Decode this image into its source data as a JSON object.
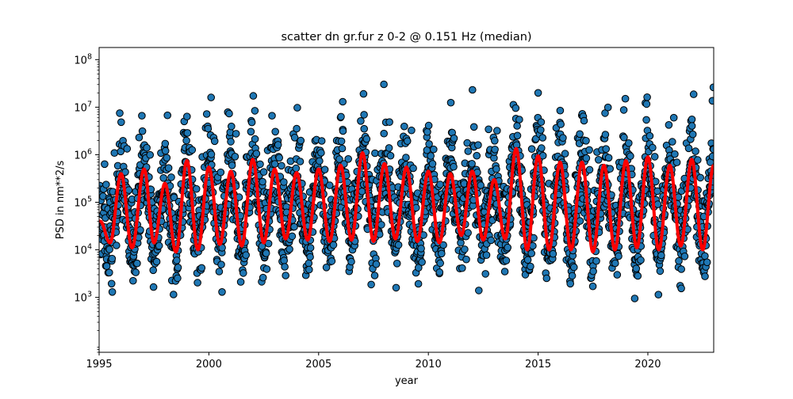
{
  "chart_data": {
    "type": "scatter",
    "title": "scatter dn gr.fur z 0-2 @ 0.151 Hz (median)",
    "xlabel": "year",
    "ylabel": "PSD in nm**2/s",
    "xlim": [
      1995,
      2023
    ],
    "ylim": [
      70,
      180000000
    ],
    "yscale": "log",
    "x_ticks": [
      1995,
      2000,
      2005,
      2010,
      2015,
      2020
    ],
    "x_tick_labels": [
      "1995",
      "2000",
      "2005",
      "2010",
      "2015",
      "2020"
    ],
    "y_ticks": [
      1000,
      10000,
      100000,
      1000000,
      10000000,
      100000000
    ],
    "y_tick_labels": [
      "10^3",
      "10^4",
      "10^5",
      "10^6",
      "10^7",
      "10^8"
    ],
    "grid": false,
    "series": [
      {
        "kind": "scatter",
        "color": "#1f77b4",
        "edgecolor": "#000000",
        "seasonal_median": {
          "peak_years": [
            1995.05,
            1996.0,
            1997.05,
            1998.0,
            1999.0,
            2000.0,
            2001.0,
            2002.0,
            2003.0,
            2004.0,
            2005.0,
            2006.0,
            2007.0,
            2008.0,
            2009.0,
            2010.0,
            2011.0,
            2012.0,
            2013.0,
            2014.0,
            2015.0,
            2016.0,
            2017.0,
            2018.0,
            2019.0,
            2020.0,
            2021.0,
            2022.0,
            2023.0
          ],
          "peak_values": [
            40000,
            400000,
            500000,
            250000,
            750000,
            550000,
            450000,
            800000,
            500000,
            420000,
            500000,
            600000,
            1100000,
            650000,
            550000,
            450000,
            400000,
            450000,
            300000,
            1350000,
            950000,
            700000,
            700000,
            600000,
            750000,
            900000,
            600000,
            800000,
            600000
          ],
          "trough_years": [
            1995.5,
            1996.5,
            1997.5,
            1998.5,
            1999.5,
            2000.5,
            2001.5,
            2002.5,
            2003.5,
            2004.5,
            2005.5,
            2006.5,
            2007.5,
            2008.5,
            2009.5,
            2010.5,
            2011.5,
            2012.5,
            2013.5,
            2014.5,
            2015.5,
            2016.5,
            2017.5,
            2018.5,
            2019.5,
            2020.5,
            2021.5,
            2022.5
          ],
          "trough_values": [
            14000,
            11000,
            14000,
            9000,
            10000,
            13000,
            12000,
            14000,
            17000,
            16000,
            15000,
            16000,
            15000,
            17000,
            15000,
            14000,
            20000,
            16000,
            17000,
            10000,
            10000,
            10000,
            9000,
            10000,
            11000,
            10000,
            12000,
            10000
          ]
        },
        "spread_above_median_decades": 1.1,
        "spread_below_median_decades": 0.75,
        "outliers": [
          {
            "x": 1995.6,
            "y": 1300
          },
          {
            "x": 2000.6,
            "y": 1300
          },
          {
            "x": 2012.3,
            "y": 1400
          },
          {
            "x": 2019.4,
            "y": 950
          },
          {
            "x": 2015.0,
            "y": 20000000
          },
          {
            "x": 2000.1,
            "y": 16000000
          },
          {
            "x": 2006.1,
            "y": 13000000
          }
        ]
      },
      {
        "kind": "line",
        "color": "#ff0000",
        "description_points": "median",
        "values_ref": "seasonal_median"
      }
    ]
  }
}
